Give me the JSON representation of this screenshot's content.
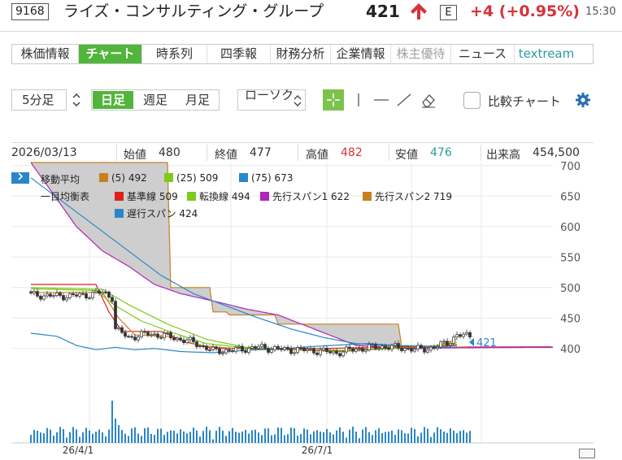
{
  "header": {
    "code": "9168",
    "company": "ライズ・コンサルティング・グループ",
    "price": "421",
    "market": "E",
    "change": "+4 (+0.95%)",
    "time": "15:30",
    "up_color": "#d6323a"
  },
  "tabs": [
    {
      "label": "株価情報",
      "state": "normal"
    },
    {
      "label": "チャート",
      "state": "active"
    },
    {
      "label": "時系列",
      "state": "normal"
    },
    {
      "label": "四季報",
      "state": "normal"
    },
    {
      "label": "財務分析",
      "state": "normal"
    },
    {
      "label": "企業情報",
      "state": "normal"
    },
    {
      "label": "株主優待",
      "state": "disabled"
    },
    {
      "label": "ニュース",
      "state": "normal"
    },
    {
      "label": "textream",
      "state": "teal"
    }
  ],
  "toolbar": {
    "interval": "5分足",
    "periods": [
      "日足",
      "週足",
      "月足"
    ],
    "active_period": "日足",
    "chart_type": "ローソク",
    "compare_label": "比較チャート",
    "accent": "#52b53b"
  },
  "ohlc": {
    "date": "2026/03/13",
    "open_label": "始値",
    "open": "480",
    "close_label": "終値",
    "close": "477",
    "high_label": "高値",
    "high": "482",
    "low_label": "安値",
    "low": "476",
    "volume_label": "出来高",
    "volume": "454,500"
  },
  "legend": {
    "toggle_icon": "chevron-right-icon",
    "ma_title": "移動平均",
    "ma5": "(5) 492",
    "ma25": "(25) 509",
    "ma75": "(75) 673",
    "ichimoku_title": "一目均衡表",
    "kijun": "基準線 509",
    "tenkan": "転換線 494",
    "senkou1": "先行スパン1 622",
    "senkou2": "先行スパン2 719",
    "chikou": "遅行スパン 424",
    "colors": {
      "ma5": "#c8801e",
      "ma25": "#7dc91c",
      "ma75": "#2a86c8",
      "kijun": "#e0201a",
      "tenkan": "#7dc91c",
      "senkou1": "#b026b8",
      "senkou2": "#c8801e",
      "chikou": "#2a86c8"
    }
  },
  "chart_data": {
    "type": "candlestick",
    "x_ticks": [
      "26/4/1",
      "26/7/1"
    ],
    "y_ticks": [
      700,
      650,
      600,
      550,
      500,
      450,
      400
    ],
    "ylim": [
      385,
      705
    ],
    "last_price_label": "421",
    "grid": true
  }
}
